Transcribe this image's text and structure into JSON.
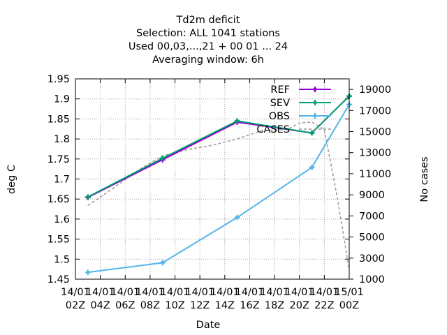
{
  "chart_data": {
    "type": "line",
    "title_lines": [
      "Td2m deficit",
      "Selection: ALL   1041 stations",
      "Used  00,03,...,21  + 00 01 ... 24",
      "Averaging window:  6h"
    ],
    "xlabel": "Date",
    "ylabel": "deg C",
    "y2label": "No cases",
    "x_ticks": [
      [
        "14/01",
        "02Z"
      ],
      [
        "14/01",
        "04Z"
      ],
      [
        "14/01",
        "06Z"
      ],
      [
        "14/01",
        "08Z"
      ],
      [
        "14/01",
        "10Z"
      ],
      [
        "14/01",
        "12Z"
      ],
      [
        "14/01",
        "14Z"
      ],
      [
        "14/01",
        "16Z"
      ],
      [
        "14/01",
        "18Z"
      ],
      [
        "14/01",
        "20Z"
      ],
      [
        "14/01",
        "22Z"
      ],
      [
        "15/01",
        "00Z"
      ]
    ],
    "x_range_hours": [
      2,
      24
    ],
    "ylim": [
      1.45,
      1.95
    ],
    "y_ticks": [
      "1.45",
      "1.5",
      "1.55",
      "1.6",
      "1.65",
      "1.7",
      "1.75",
      "1.8",
      "1.85",
      "1.9",
      "1.95"
    ],
    "y2lim": [
      1000,
      20000
    ],
    "y2_ticks": [
      "1000",
      "3000",
      "5000",
      "7000",
      "9000",
      "11000",
      "13000",
      "15000",
      "17000",
      "19000"
    ],
    "grid": true,
    "legend_position": "top-right",
    "series": [
      {
        "name": "REF",
        "axis": "left",
        "color": "#9400d3",
        "style": "solid",
        "marker": "plus",
        "x": [
          3,
          9,
          15,
          21,
          24
        ],
        "y": [
          1.654,
          1.748,
          1.842,
          1.815,
          1.907
        ]
      },
      {
        "name": "SEV",
        "axis": "left",
        "color": "#009e73",
        "style": "solid",
        "marker": "plus",
        "x": [
          3,
          9,
          15,
          21,
          24
        ],
        "y": [
          1.655,
          1.752,
          1.845,
          1.815,
          1.907
        ]
      },
      {
        "name": "OBS",
        "axis": "left",
        "color": "#56b4e9",
        "style": "solid",
        "marker": "plus",
        "x": [
          3,
          9,
          15,
          21,
          24
        ],
        "y": [
          1.467,
          1.491,
          1.604,
          1.729,
          1.886
        ]
      },
      {
        "name": "CASES",
        "axis": "right",
        "color": "#999999",
        "style": "dashed",
        "marker": "none",
        "x": [
          3,
          5,
          7,
          9,
          11,
          13,
          15,
          17,
          19,
          20,
          21,
          22,
          23,
          24
        ],
        "y": [
          8000,
          9600,
          11300,
          12700,
          13300,
          13700,
          14300,
          15100,
          15200,
          15800,
          15900,
          15200,
          9000,
          1900
        ]
      }
    ]
  }
}
